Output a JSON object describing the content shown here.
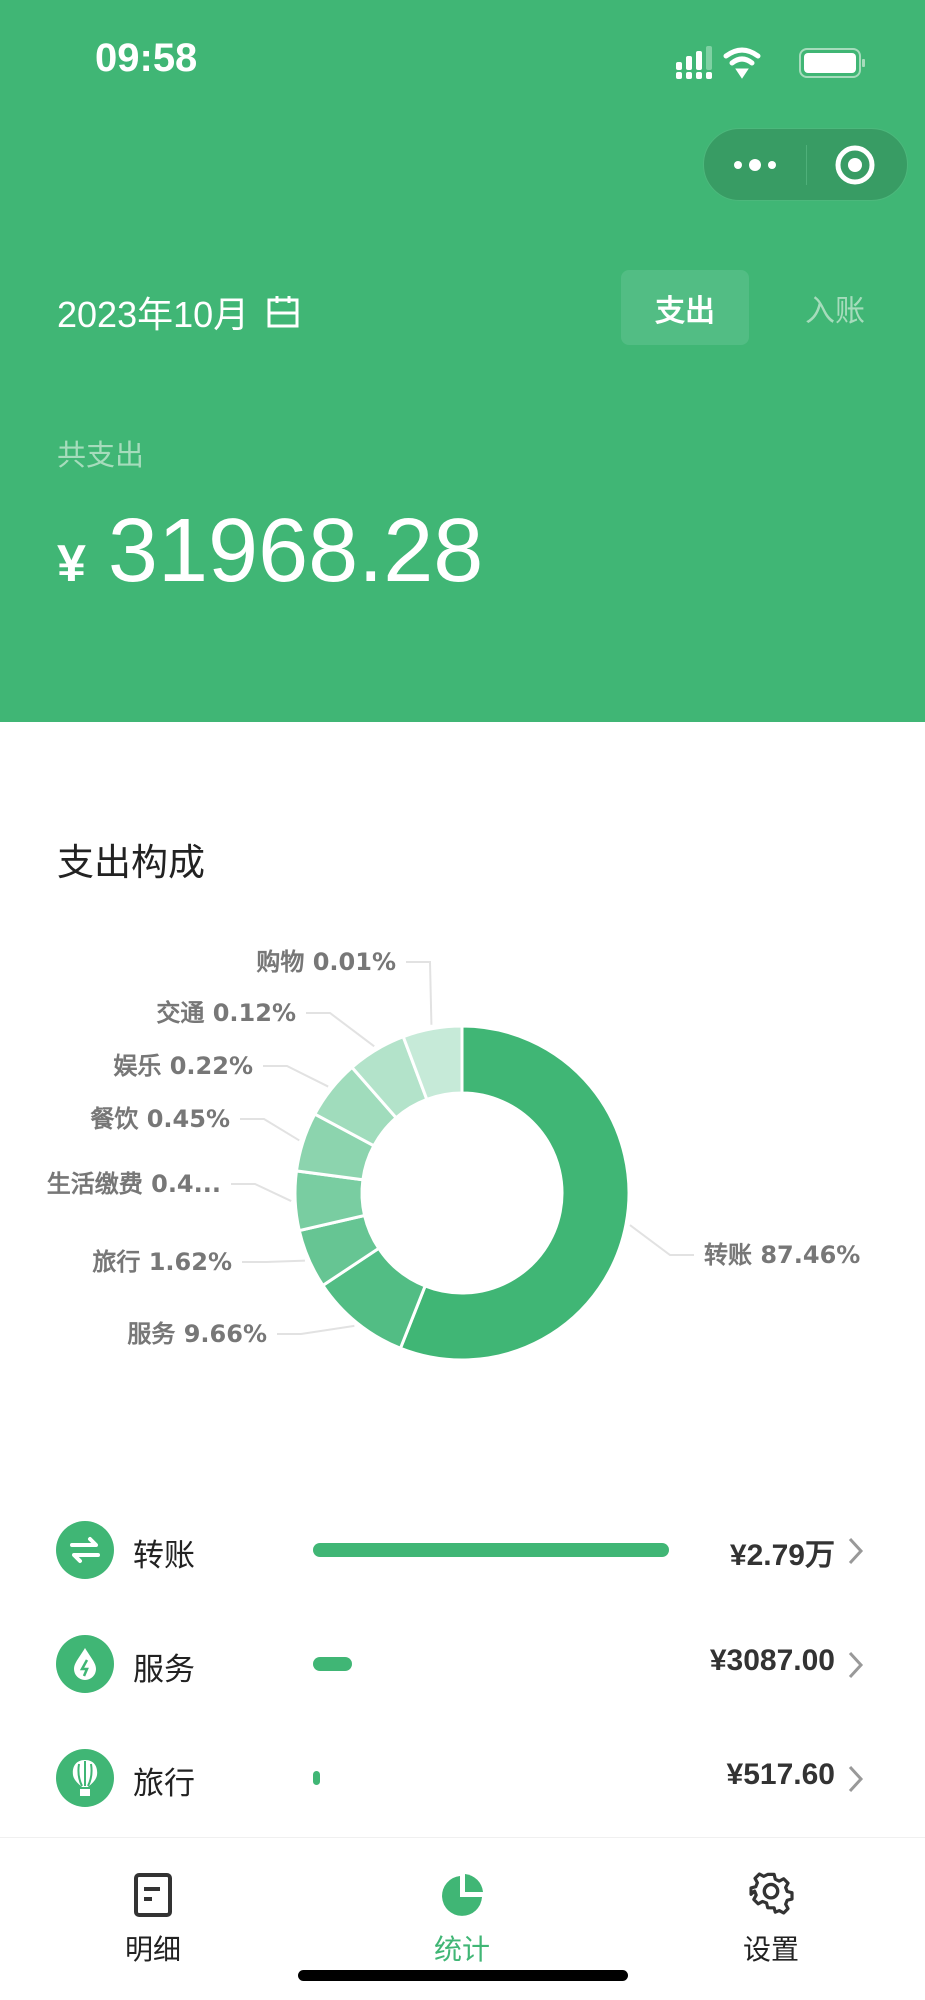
{
  "status_bar": {
    "time": "09:58"
  },
  "header": {
    "date": "2023年10月",
    "tabs": [
      {
        "label": "支出",
        "active": true
      },
      {
        "label": "入账",
        "active": false
      }
    ],
    "total_label": "共支出",
    "currency": "¥",
    "total": "31968.28"
  },
  "colors": {
    "accent": "#40b675",
    "capsule": "#389c64"
  },
  "chart_data": {
    "type": "pie",
    "title": "支出构成",
    "style": "donut",
    "slices": [
      {
        "name": "转账",
        "percent": 87.46,
        "label": "转账 87.46%",
        "color": "#40b675"
      },
      {
        "name": "服务",
        "percent": 9.66,
        "label": "服务 9.66%",
        "color": "#52bd84"
      },
      {
        "name": "旅行",
        "percent": 1.62,
        "label": "旅行 1.62%",
        "color": "#66c593"
      },
      {
        "name": "生活缴费",
        "percent": 0.4,
        "label": "生活缴费 0.4...",
        "color": "#79cda1"
      },
      {
        "name": "餐饮",
        "percent": 0.45,
        "label": "餐饮 0.45%",
        "color": "#8cd4ae"
      },
      {
        "name": "娱乐",
        "percent": 0.22,
        "label": "娱乐 0.22%",
        "color": "#a0dcbc"
      },
      {
        "name": "交通",
        "percent": 0.12,
        "label": "交通 0.12%",
        "color": "#b3e3ca"
      },
      {
        "name": "购物",
        "percent": 0.01,
        "label": "购物 0.01%",
        "color": "#c6ead8"
      }
    ]
  },
  "categories": [
    {
      "name": "转账",
      "icon": "transfer-icon",
      "amount": "¥2.79万",
      "share": 1.0
    },
    {
      "name": "服务",
      "icon": "service-drop-icon",
      "amount": "¥3087.00",
      "share": 0.11
    },
    {
      "name": "旅行",
      "icon": "balloon-icon",
      "amount": "¥517.60",
      "share": 0.0186
    }
  ],
  "tabbar": [
    {
      "label": "明细",
      "icon": "document-icon"
    },
    {
      "label": "统计",
      "icon": "pie-chart-icon",
      "active": true
    },
    {
      "label": "设置",
      "icon": "gear-icon"
    }
  ]
}
